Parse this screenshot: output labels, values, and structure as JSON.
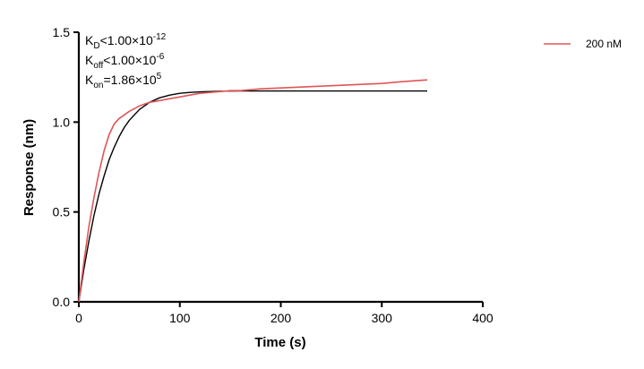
{
  "chart_data": {
    "type": "line",
    "xlabel": "Time (s)",
    "ylabel": "Response (nm)",
    "xlim": [
      0,
      400
    ],
    "ylim": [
      0,
      1.5
    ],
    "x_ticks": [
      "0",
      "100",
      "200",
      "300",
      "400"
    ],
    "y_ticks": [
      "0.0",
      "0.5",
      "1.0",
      "1.5"
    ],
    "legend_position": "top-right",
    "annotations": {
      "kd": {
        "base": "K",
        "sub": "D",
        "op": "<",
        "mant": "1.00×10",
        "exp": "-12"
      },
      "koff": {
        "base": "K",
        "sub": "off",
        "op": "<",
        "mant": "1.00×10",
        "exp": "-6"
      },
      "kon": {
        "base": "K",
        "sub": "on",
        "op": "=",
        "mant": "1.86×10",
        "exp": "5"
      }
    },
    "series": [
      {
        "name": "200 nM",
        "color": "#e05555",
        "x": [
          0,
          5,
          10,
          15,
          20,
          25,
          30,
          35,
          40,
          45,
          50,
          60,
          70,
          80,
          90,
          100,
          110,
          120,
          130,
          140,
          150,
          160,
          170,
          180,
          200,
          220,
          240,
          260,
          280,
          300,
          320,
          345
        ],
        "y": [
          0.0,
          0.22,
          0.42,
          0.58,
          0.72,
          0.84,
          0.93,
          0.99,
          1.02,
          1.04,
          1.06,
          1.09,
          1.11,
          1.12,
          1.13,
          1.14,
          1.15,
          1.16,
          1.165,
          1.17,
          1.175,
          1.175,
          1.18,
          1.185,
          1.19,
          1.195,
          1.2,
          1.205,
          1.21,
          1.215,
          1.225,
          1.235
        ]
      },
      {
        "color": "#000000",
        "x": [
          0,
          5,
          10,
          15,
          20,
          25,
          30,
          35,
          40,
          45,
          50,
          60,
          70,
          80,
          90,
          100,
          110,
          120,
          130,
          140,
          160,
          180,
          200,
          250,
          300,
          345
        ],
        "y": [
          0.0,
          0.18,
          0.34,
          0.48,
          0.6,
          0.7,
          0.79,
          0.86,
          0.92,
          0.97,
          1.01,
          1.07,
          1.11,
          1.135,
          1.15,
          1.16,
          1.165,
          1.168,
          1.17,
          1.172,
          1.173,
          1.173,
          1.173,
          1.173,
          1.173,
          1.173
        ]
      }
    ]
  }
}
